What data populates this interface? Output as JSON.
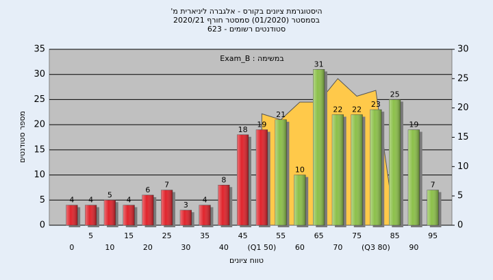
{
  "chart_data": {
    "type": "bar",
    "title": [
      "היסטוגרמת ציונים בקורס - אלגברה ליניארית מ'",
      "בסמסטר  (01/2020)  סמסטר חורף 2020/21",
      "סטודנטים רשומים - 623"
    ],
    "annotation": "במשימה : Exam_B",
    "x_label": "טווח ציונים",
    "y_label": "מספר סטודנטים",
    "categories": [
      "0",
      "5",
      "10",
      "15",
      "20",
      "25",
      "30",
      "35",
      "40",
      "45",
      "(Q1 50)",
      "55",
      "60",
      "65",
      "70",
      "75",
      "(Q3 80)",
      "85",
      "90",
      "95"
    ],
    "values": [
      4,
      4,
      5,
      4,
      6,
      7,
      3,
      4,
      8,
      18,
      19,
      21,
      10,
      31,
      22,
      22,
      23,
      25,
      19,
      7
    ],
    "colors": [
      "#e0242c",
      "#e0242c",
      "#e0242c",
      "#e0242c",
      "#e0242c",
      "#e0242c",
      "#e0242c",
      "#e0242c",
      "#e0242c",
      "#e0242c",
      "#e0242c",
      "#8cc04a",
      "#8cc04a",
      "#8cc04a",
      "#8cc04a",
      "#8cc04a",
      "#8cc04a",
      "#8cc04a",
      "#8cc04a",
      "#8cc04a"
    ],
    "area": {
      "color": "#ffc94a",
      "axis": "y2",
      "values": [
        null,
        null,
        null,
        null,
        null,
        null,
        null,
        null,
        null,
        null,
        19,
        18,
        21,
        21,
        25,
        22,
        23,
        0,
        null,
        null
      ]
    },
    "ylim": [
      0,
      35
    ],
    "yticks": [
      0,
      5,
      10,
      15,
      20,
      25,
      30,
      35
    ],
    "y2lim": [
      0,
      30
    ],
    "y2ticks": [
      0,
      5,
      10,
      15,
      20,
      25,
      30
    ],
    "grid": true
  }
}
